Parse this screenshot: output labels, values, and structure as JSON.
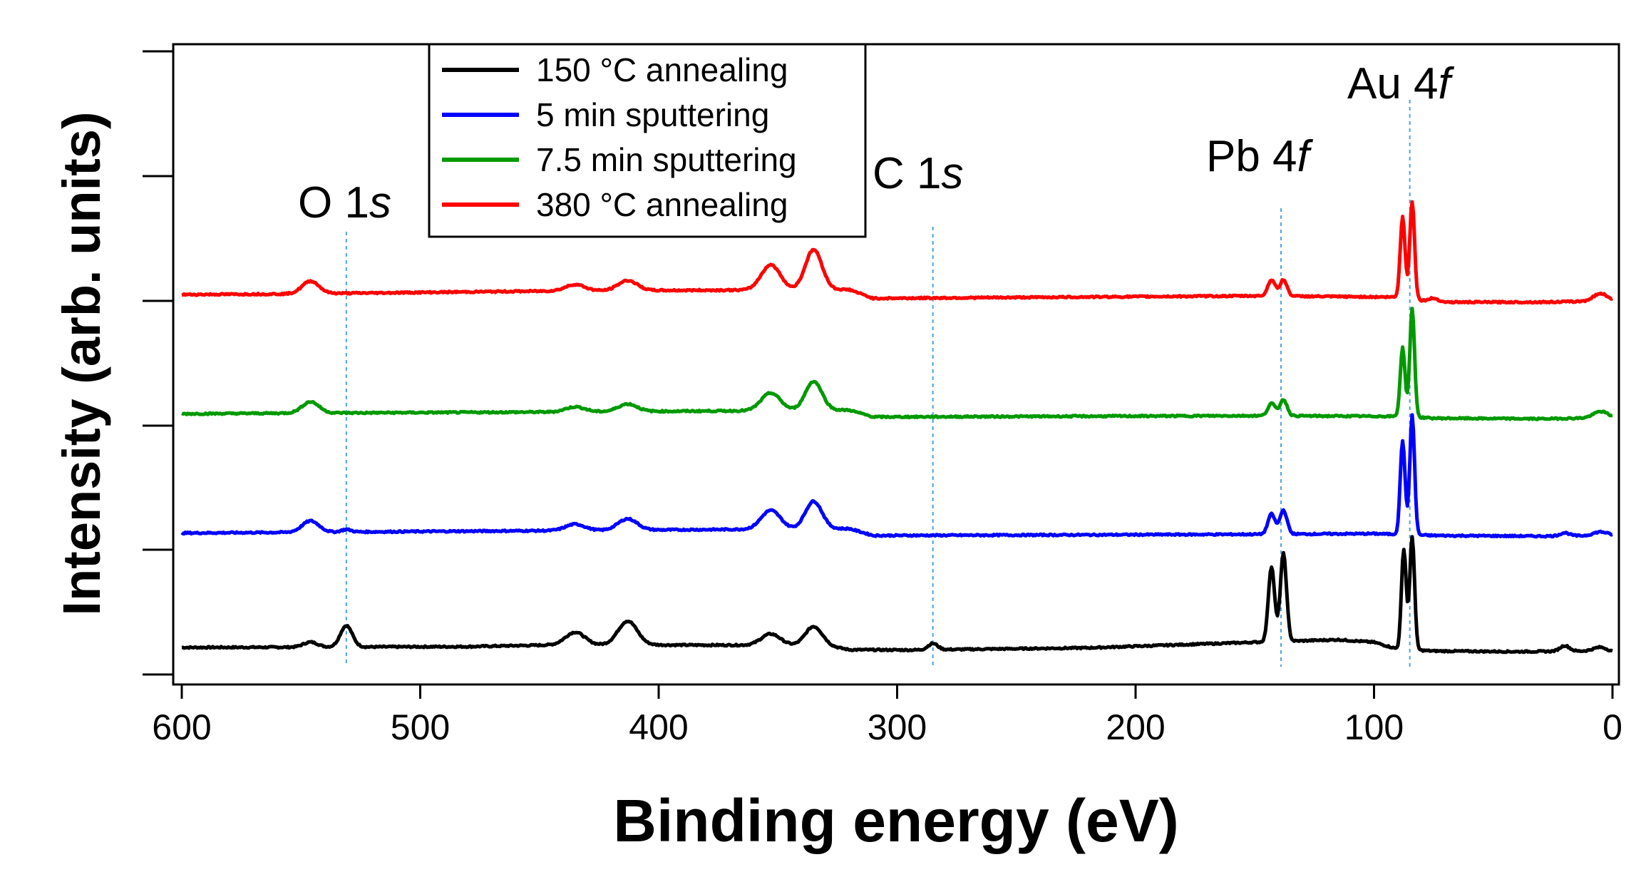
{
  "chart_data": {
    "type": "line",
    "xlabel": "Binding energy (eV)",
    "ylabel": "Intensity (arb. units)",
    "xlim": [
      600,
      0
    ],
    "x_reversed": true,
    "x_ticks": [
      "600",
      "500",
      "400",
      "300",
      "200",
      "100",
      "0"
    ],
    "y_ticks_labeled": false,
    "grid": false,
    "legend_position": "top-left",
    "peak_markers": [
      {
        "element": "O 1",
        "orbital": "s",
        "x": 531
      },
      {
        "element": "C 1",
        "orbital": "s",
        "x": 285
      },
      {
        "element": "Pb 4",
        "orbital": "f",
        "x": 139
      },
      {
        "element": "Au 4",
        "orbital": "f",
        "x": 85
      }
    ],
    "series": [
      {
        "name": "150 °C annealing",
        "color": "#000000",
        "baseline": [
          [
            600,
            0.38
          ],
          [
            560,
            0.4
          ],
          [
            480,
            0.45
          ],
          [
            440,
            0.6
          ],
          [
            330,
            0.55
          ],
          [
            320,
            0.2
          ],
          [
            295,
            0.18
          ],
          [
            220,
            0.35
          ],
          [
            150,
            0.8
          ],
          [
            115,
            1.0
          ],
          [
            100,
            0.8
          ],
          [
            90,
            0.25
          ],
          [
            75,
            0.1
          ],
          [
            40,
            0.05
          ],
          [
            5,
            0.1
          ],
          [
            0,
            0.0
          ]
        ],
        "peaks": [
          [
            546,
            0.4,
            3
          ],
          [
            531,
            1.7,
            2.5
          ],
          [
            435,
            1.0,
            4
          ],
          [
            413,
            1.9,
            4
          ],
          [
            353,
            0.9,
            4
          ],
          [
            335,
            1.5,
            3.5
          ],
          [
            285,
            0.5,
            2
          ],
          [
            143,
            6.0,
            1.3
          ],
          [
            138,
            7.0,
            1.3
          ],
          [
            87.5,
            8.0,
            1.0
          ],
          [
            84,
            9.0,
            1.0
          ],
          [
            20,
            0.45,
            2
          ],
          [
            5,
            0.3,
            3
          ]
        ]
      },
      {
        "name": "5 min sputtering",
        "color": "#0000ff",
        "baseline": [
          [
            600,
            0.0
          ],
          [
            560,
            0.05
          ],
          [
            440,
            0.2
          ],
          [
            320,
            0.35
          ],
          [
            310,
            -0.2
          ],
          [
            150,
            -0.1
          ],
          [
            100,
            -0.05
          ],
          [
            90,
            -0.1
          ],
          [
            75,
            -0.2
          ],
          [
            30,
            -0.25
          ],
          [
            0,
            -0.2
          ]
        ],
        "peaks": [
          [
            546,
            0.9,
            3.5
          ],
          [
            531,
            0.2,
            2
          ],
          [
            435,
            0.5,
            4
          ],
          [
            413,
            0.9,
            4
          ],
          [
            353,
            1.5,
            4
          ],
          [
            335,
            2.2,
            3.5
          ],
          [
            143,
            1.6,
            1.5
          ],
          [
            138,
            1.9,
            1.5
          ],
          [
            88,
            7.5,
            1.0
          ],
          [
            84,
            9.5,
            1.0
          ],
          [
            20,
            0.25,
            2
          ],
          [
            5,
            0.3,
            3
          ]
        ]
      },
      {
        "name": "7.5 min sputtering",
        "color": "#009900",
        "baseline": [
          [
            600,
            0.0
          ],
          [
            560,
            0.05
          ],
          [
            440,
            0.15
          ],
          [
            320,
            0.3
          ],
          [
            310,
            -0.25
          ],
          [
            150,
            -0.15
          ],
          [
            90,
            -0.2
          ],
          [
            75,
            -0.35
          ],
          [
            30,
            -0.4
          ],
          [
            0,
            -0.3
          ]
        ],
        "peaks": [
          [
            546,
            0.9,
            3.5
          ],
          [
            435,
            0.4,
            4
          ],
          [
            413,
            0.6,
            4
          ],
          [
            353,
            1.4,
            4
          ],
          [
            335,
            2.3,
            3.5
          ],
          [
            143,
            1.0,
            1.5
          ],
          [
            138,
            1.3,
            1.5
          ],
          [
            88,
            5.5,
            1.0
          ],
          [
            84,
            8.6,
            1.0
          ],
          [
            5,
            0.5,
            3
          ]
        ]
      },
      {
        "name": "380 °C annealing",
        "color": "#ff0000",
        "baseline": [
          [
            600,
            0.0
          ],
          [
            560,
            0.05
          ],
          [
            440,
            0.3
          ],
          [
            320,
            0.4
          ],
          [
            310,
            -0.3
          ],
          [
            150,
            -0.1
          ],
          [
            90,
            -0.2
          ],
          [
            75,
            -0.6
          ],
          [
            30,
            -0.6
          ],
          [
            0,
            -0.5
          ]
        ],
        "peaks": [
          [
            546,
            1.0,
            3.5
          ],
          [
            435,
            0.5,
            4
          ],
          [
            413,
            0.8,
            4
          ],
          [
            353,
            2.0,
            4
          ],
          [
            335,
            3.2,
            3.5
          ],
          [
            143,
            1.3,
            1.5
          ],
          [
            138,
            1.3,
            1.5
          ],
          [
            88,
            6.5,
            1.0
          ],
          [
            84,
            7.8,
            1.0
          ],
          [
            75,
            0.3,
            2
          ],
          [
            5,
            0.6,
            3
          ]
        ]
      }
    ],
    "offsets": [
      0,
      9.5,
      19.0,
      28.5
    ],
    "ylim": [
      -2,
      48
    ]
  }
}
